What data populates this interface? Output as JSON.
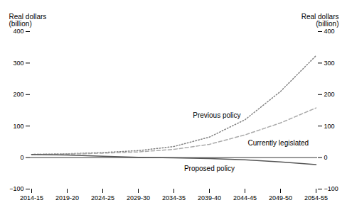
{
  "chart_data": {
    "type": "line",
    "categories": [
      "2014-15",
      "2019-20",
      "2024-25",
      "2029-30",
      "2034-35",
      "2039-40",
      "2044-45",
      "2049-50",
      "2054-55"
    ],
    "series": [
      {
        "name": "Previous policy",
        "color": "#808080",
        "line_style": "dotted",
        "values": [
          10,
          12,
          16,
          22,
          35,
          65,
          120,
          210,
          323.6
        ]
      },
      {
        "name": "Currently legislated",
        "color": "#aaaaaa",
        "line_style": "dashed",
        "values": [
          10,
          11,
          14,
          18,
          26,
          42,
          72,
          110,
          157.6
        ]
      },
      {
        "name": "Proposed policy",
        "color": "#555555",
        "line_style": "solid",
        "values": [
          10,
          8,
          4,
          1,
          -1,
          -3,
          -7,
          -14,
          -22.3
        ]
      }
    ],
    "ylim": [
      -100,
      400
    ],
    "yticks": [
      -100,
      0,
      100,
      200,
      300,
      400
    ],
    "ylabel": "Real dollars\n(billion)",
    "y2ticks": [
      -100,
      0,
      100,
      200,
      300,
      400
    ],
    "y2label": "Real dollars\n(billion)",
    "hlines": [
      0
    ]
  }
}
